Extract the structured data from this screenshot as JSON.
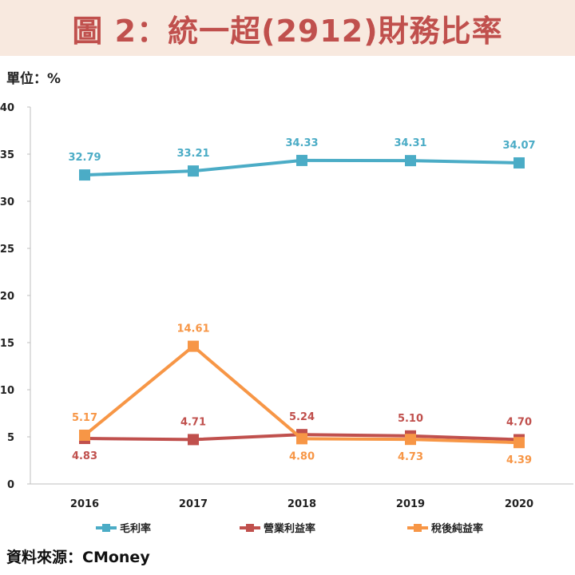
{
  "title": "圖 2：統一超(2912)財務比率",
  "unit_label": "單位：%",
  "source": "資料來源：CMoney",
  "colors": {
    "title": "#c0504d",
    "banner": "#f8e9df",
    "series": [
      "#4bacc6",
      "#c0504d",
      "#f79646"
    ]
  },
  "chart_data": {
    "type": "line",
    "categories": [
      "2016",
      "2017",
      "2018",
      "2019",
      "2020"
    ],
    "ylim": [
      0,
      40
    ],
    "yticks": [
      0,
      5,
      10,
      15,
      20,
      25,
      30,
      35,
      40
    ],
    "grid": false,
    "legend_position": "bottom",
    "series": [
      {
        "name": "毛利率",
        "values": [
          32.79,
          33.21,
          34.33,
          34.31,
          34.07
        ],
        "color": "#4bacc6",
        "labels": [
          "32.79",
          "33.21",
          "34.33",
          "34.31",
          "34.07"
        ]
      },
      {
        "name": "營業利益率",
        "values": [
          4.83,
          4.71,
          5.24,
          5.1,
          4.7
        ],
        "color": "#c0504d",
        "labels": [
          "4.83",
          "4.71",
          "5.24",
          "5.10",
          "4.70"
        ]
      },
      {
        "name": "稅後純益率",
        "values": [
          5.17,
          14.61,
          4.8,
          4.73,
          4.39
        ],
        "color": "#f79646",
        "labels": [
          "5.17",
          "14.61",
          "4.80",
          "4.73",
          "4.39"
        ]
      }
    ]
  }
}
